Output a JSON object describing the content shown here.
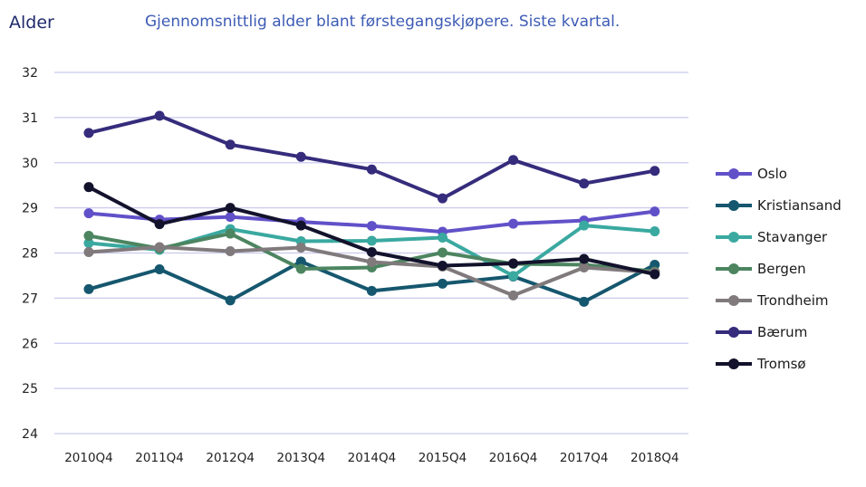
{
  "header": {
    "axis_title": "Alder",
    "chart_title": "Gjennomsnittlig alder blant førstegangskjøpere. Siste kvartal."
  },
  "chart_data": {
    "type": "line",
    "title": "Gjennomsnittlig alder blant førstegangskjøpere. Siste kvartal.",
    "xlabel": "",
    "ylabel": "Alder",
    "ylim": [
      24,
      32
    ],
    "yticks": [
      "24",
      "25",
      "26",
      "27",
      "28",
      "29",
      "30",
      "31",
      "32"
    ],
    "grid": true,
    "legend_position": "right",
    "categories": [
      "2010Q4",
      "2011Q4",
      "2012Q4",
      "2013Q4",
      "2014Q4",
      "2015Q4",
      "2016Q4",
      "2017Q4",
      "2018Q4"
    ],
    "series": [
      {
        "name": "Oslo",
        "color": "#6151c8",
        "values": [
          28.88,
          28.74,
          28.8,
          28.69,
          28.6,
          28.47,
          28.65,
          28.72,
          28.92
        ]
      },
      {
        "name": "Kristiansand",
        "color": "#15576e",
        "values": [
          27.2,
          27.64,
          26.95,
          27.81,
          27.16,
          27.32,
          27.48,
          26.92,
          27.74
        ]
      },
      {
        "name": "Stavanger",
        "color": "#3aa9a0",
        "values": [
          28.22,
          28.07,
          28.53,
          28.26,
          28.27,
          28.34,
          27.49,
          28.61,
          28.48
        ]
      },
      {
        "name": "Bergen",
        "color": "#4c8560",
        "values": [
          28.38,
          28.1,
          28.43,
          27.65,
          27.68,
          28.01,
          27.76,
          27.74,
          27.59
        ]
      },
      {
        "name": "Trondheim",
        "color": "#807a7c",
        "values": [
          28.02,
          28.13,
          28.04,
          28.12,
          27.8,
          27.7,
          27.06,
          27.68,
          27.57
        ]
      },
      {
        "name": "Bærum",
        "color": "#352c7c",
        "values": [
          30.66,
          31.04,
          30.4,
          30.13,
          29.85,
          29.21,
          30.06,
          29.54,
          29.82
        ]
      },
      {
        "name": "Tromsø",
        "color": "#13122c",
        "values": [
          29.46,
          28.64,
          29.0,
          28.61,
          28.02,
          27.72,
          27.77,
          27.87,
          27.53
        ]
      }
    ]
  }
}
